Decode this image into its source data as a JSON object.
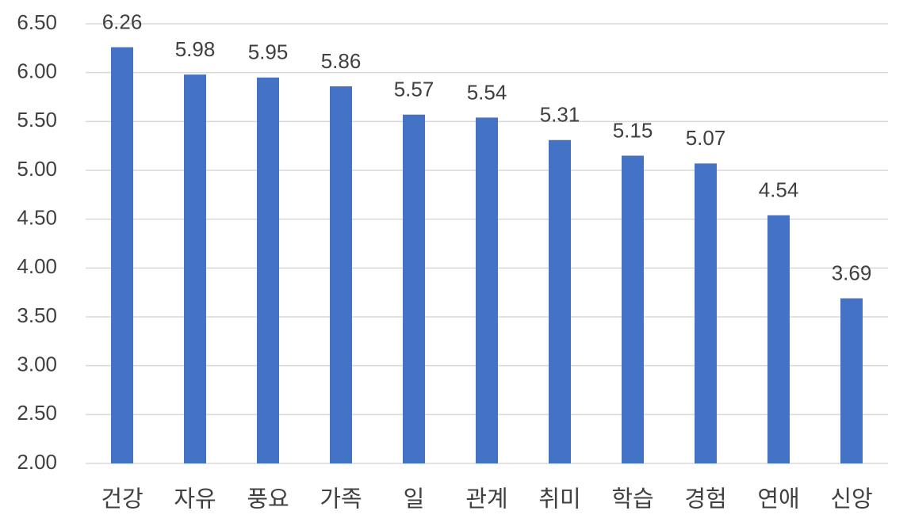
{
  "chart_data": {
    "type": "bar",
    "categories": [
      "건강",
      "자유",
      "풍요",
      "가족",
      "일",
      "관계",
      "취미",
      "학습",
      "경험",
      "연애",
      "신앙"
    ],
    "values": [
      6.26,
      5.98,
      5.95,
      5.86,
      5.57,
      5.54,
      5.31,
      5.15,
      5.07,
      4.54,
      3.69
    ],
    "color": "#4472c4",
    "ylim": [
      2,
      6.5
    ],
    "yticks": [
      {
        "value": 2,
        "label": "2.00"
      },
      {
        "value": 2.5,
        "label": "2.50"
      },
      {
        "value": 3,
        "label": "3.00"
      },
      {
        "value": 3.5,
        "label": "3.50"
      },
      {
        "value": 4,
        "label": "4.00"
      },
      {
        "value": 4.5,
        "label": "4.50"
      },
      {
        "value": 5,
        "label": "5.00"
      },
      {
        "value": 5.5,
        "label": "5.50"
      },
      {
        "value": 6,
        "label": "6.00"
      },
      {
        "value": 6.5,
        "label": "6.50"
      }
    ],
    "grid": true
  }
}
